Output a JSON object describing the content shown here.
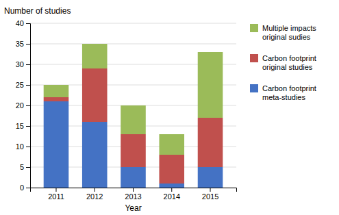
{
  "chart_data": {
    "type": "bar",
    "stacked": true,
    "xlabel": "Year",
    "ylabel": "Number of studies",
    "categories": [
      "2011",
      "2012",
      "2013",
      "2014",
      "2015"
    ],
    "series": [
      {
        "name": "Carbon footprint\nmeta-studies",
        "color": "#4472C4",
        "values": [
          21,
          16,
          5,
          1,
          5
        ]
      },
      {
        "name": "Carbon footprint\noriginal studies",
        "color": "#C0504D",
        "values": [
          1,
          13,
          8,
          7,
          12
        ]
      },
      {
        "name": "Multiple impacts\noriginal sudies",
        "color": "#9BBB59",
        "values": [
          3,
          6,
          7,
          5,
          16
        ]
      }
    ],
    "ylim": [
      0,
      40
    ],
    "yticks": [
      0,
      5,
      10,
      15,
      20,
      25,
      30,
      35,
      40
    ],
    "grid": true,
    "legend": "right"
  }
}
